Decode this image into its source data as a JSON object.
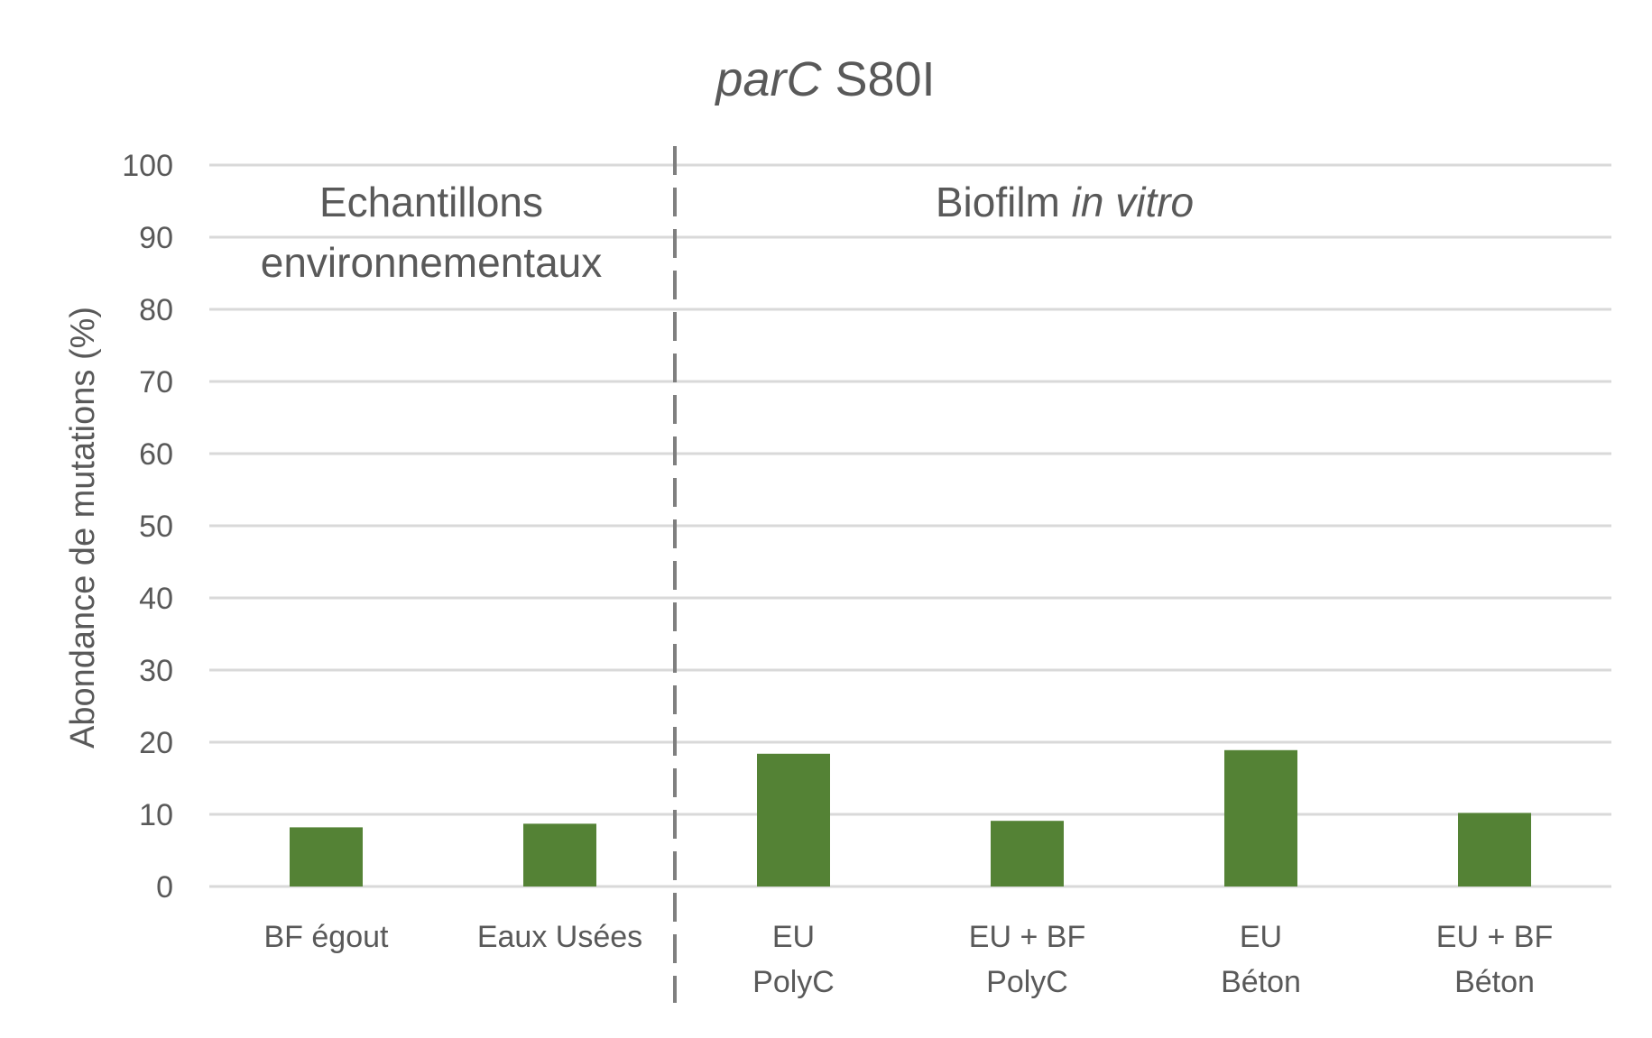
{
  "chart_data": {
    "type": "bar",
    "title_italic": "parC",
    "title_rest": " S80I",
    "ylabel": "Abondance de mutations (%)",
    "xlabel": "",
    "ylim": [
      0,
      100
    ],
    "yticks": [
      0,
      10,
      20,
      30,
      40,
      50,
      60,
      70,
      80,
      90,
      100
    ],
    "grid": true,
    "categories": [
      [
        "BF égout"
      ],
      [
        "Eaux Usées"
      ],
      [
        "EU",
        "PolyC"
      ],
      [
        "EU + BF",
        "PolyC"
      ],
      [
        "EU",
        "Béton"
      ],
      [
        "EU + BF",
        "Béton"
      ]
    ],
    "values": [
      8.2,
      8.7,
      18.4,
      9.1,
      18.9,
      10.2
    ],
    "bar_color": "#548235",
    "group_labels": {
      "left_line1": "Echantillons",
      "left_line2": "environnementaux",
      "right_plain": "Biofilm ",
      "right_italic": "in vitro"
    }
  }
}
